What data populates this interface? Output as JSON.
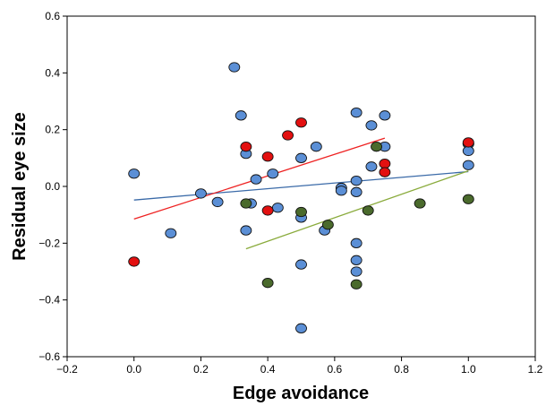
{
  "chart_data": {
    "type": "scatter",
    "title": "",
    "xlabel": "Edge avoidance",
    "ylabel": "Residual eye size",
    "xlim": [
      -0.2,
      1.2
    ],
    "ylim": [
      -0.6,
      0.6
    ],
    "xticks": [
      -0.2,
      0.0,
      0.2,
      0.4,
      0.6,
      0.8,
      1.0,
      1.2
    ],
    "yticks": [
      -0.6,
      -0.4,
      -0.2,
      0.0,
      0.2,
      0.4,
      0.6
    ],
    "xtick_labels": [
      "−0.2",
      "0.0",
      "0.2",
      "0.4",
      "0.6",
      "0.8",
      "1.0",
      "1.2"
    ],
    "ytick_labels": [
      "−0.6",
      "−0.4",
      "−0.2",
      "0.0",
      "0.2",
      "0.4",
      "0.6"
    ],
    "grid": false,
    "series": [
      {
        "color": "#5b8fd6",
        "line_color": "#3a6aa8",
        "trend": [
          [
            0.0,
            -0.048
          ],
          [
            1.0,
            0.052
          ]
        ],
        "points": [
          [
            0.0,
            0.045
          ],
          [
            0.11,
            -0.165
          ],
          [
            0.2,
            -0.025
          ],
          [
            0.25,
            -0.055
          ],
          [
            0.3,
            0.42
          ],
          [
            0.32,
            0.25
          ],
          [
            0.335,
            0.115
          ],
          [
            0.335,
            -0.155
          ],
          [
            0.35,
            -0.06
          ],
          [
            0.365,
            0.025
          ],
          [
            0.415,
            0.045
          ],
          [
            0.43,
            -0.075
          ],
          [
            0.5,
            0.1
          ],
          [
            0.5,
            -0.11
          ],
          [
            0.5,
            -0.275
          ],
          [
            0.5,
            -0.5
          ],
          [
            0.545,
            0.14
          ],
          [
            0.57,
            -0.155
          ],
          [
            0.62,
            -0.005
          ],
          [
            0.62,
            -0.015
          ],
          [
            0.665,
            0.26
          ],
          [
            0.665,
            0.02
          ],
          [
            0.665,
            -0.02
          ],
          [
            0.665,
            -0.2
          ],
          [
            0.665,
            -0.26
          ],
          [
            0.665,
            -0.3
          ],
          [
            0.71,
            0.215
          ],
          [
            0.71,
            0.07
          ],
          [
            0.75,
            0.25
          ],
          [
            0.75,
            0.14
          ],
          [
            1.0,
            0.15
          ],
          [
            1.0,
            0.15
          ],
          [
            1.0,
            0.125
          ],
          [
            1.0,
            0.075
          ]
        ]
      },
      {
        "color": "#e31010",
        "line_color": "#ee2222",
        "trend": [
          [
            0.0,
            -0.115
          ],
          [
            0.75,
            0.17
          ]
        ],
        "points": [
          [
            0.0,
            -0.265
          ],
          [
            0.335,
            0.14
          ],
          [
            0.4,
            0.105
          ],
          [
            0.4,
            -0.085
          ],
          [
            0.46,
            0.18
          ],
          [
            0.5,
            0.225
          ],
          [
            0.75,
            0.08
          ],
          [
            0.75,
            0.05
          ],
          [
            1.0,
            0.155
          ]
        ]
      },
      {
        "color": "#4a6a2c",
        "line_color": "#8aab3c",
        "trend": [
          [
            0.335,
            -0.22
          ],
          [
            1.0,
            0.055
          ]
        ],
        "points": [
          [
            0.335,
            -0.06
          ],
          [
            0.4,
            -0.34
          ],
          [
            0.5,
            -0.09
          ],
          [
            0.58,
            -0.135
          ],
          [
            0.665,
            -0.345
          ],
          [
            0.7,
            -0.085
          ],
          [
            0.725,
            0.14
          ],
          [
            0.855,
            -0.06
          ],
          [
            1.0,
            -0.045
          ]
        ]
      }
    ]
  }
}
